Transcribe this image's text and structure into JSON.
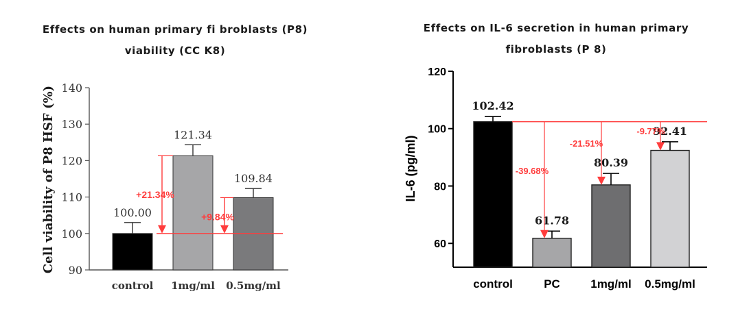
{
  "chart_data": [
    {
      "type": "bar",
      "title": "Effects on human primary fibroblasts (P8) viability (CCK8)",
      "title_lines": [
        "Effects on human primary fi broblasts (P8)",
        "viability (CC K8)"
      ],
      "ylabel": "Cell viability of P8 HSF (%)",
      "xlabel": "",
      "categories": [
        "control",
        "1mg/ml",
        "0.5mg/ml"
      ],
      "values": [
        100.0,
        121.34,
        109.84
      ],
      "value_labels": [
        "100.00",
        "121.34",
        "109.84"
      ],
      "errors": [
        3,
        3,
        2.5
      ],
      "ylim": [
        90,
        140
      ],
      "yticks": [
        90,
        100,
        110,
        120,
        130,
        140
      ],
      "bar_colors": [
        "#000000",
        "#a6a6a8",
        "#7a7a7c"
      ],
      "reference_line": 100,
      "annotations": [
        {
          "bar": 1,
          "text": "+21.34%"
        },
        {
          "bar": 2,
          "text": "+9.84%"
        }
      ],
      "annotation_color": "#ff3c3c"
    },
    {
      "type": "bar",
      "title": "Effects on IL-6 secretion in human primary fibroblasts (P8)",
      "title_lines": [
        "Effects on IL-6 secretion in human primary",
        "fibroblasts (P 8)"
      ],
      "ylabel": "IL-6 (pg/ml)",
      "xlabel": "",
      "categories": [
        "control",
        "PC",
        "1mg/ml",
        "0.5mg/ml"
      ],
      "values": [
        102.42,
        61.78,
        80.39,
        92.41
      ],
      "value_labels": [
        "102.42",
        "61.78",
        "80.39",
        "92.41"
      ],
      "errors": [
        1.8,
        2.5,
        4,
        3
      ],
      "ylim": [
        51.7,
        120
      ],
      "yticks": [
        60,
        80,
        100,
        120
      ],
      "bar_colors": [
        "#000000",
        "#a6a6a8",
        "#6e6e70",
        "#d2d2d4"
      ],
      "reference_line": 102.42,
      "annotations": [
        {
          "bar": 1,
          "text": "-39.68%"
        },
        {
          "bar": 2,
          "text": "-21.51%"
        },
        {
          "bar": 3,
          "text": "-9.77%"
        }
      ],
      "annotation_color": "#ff3c3c"
    }
  ]
}
